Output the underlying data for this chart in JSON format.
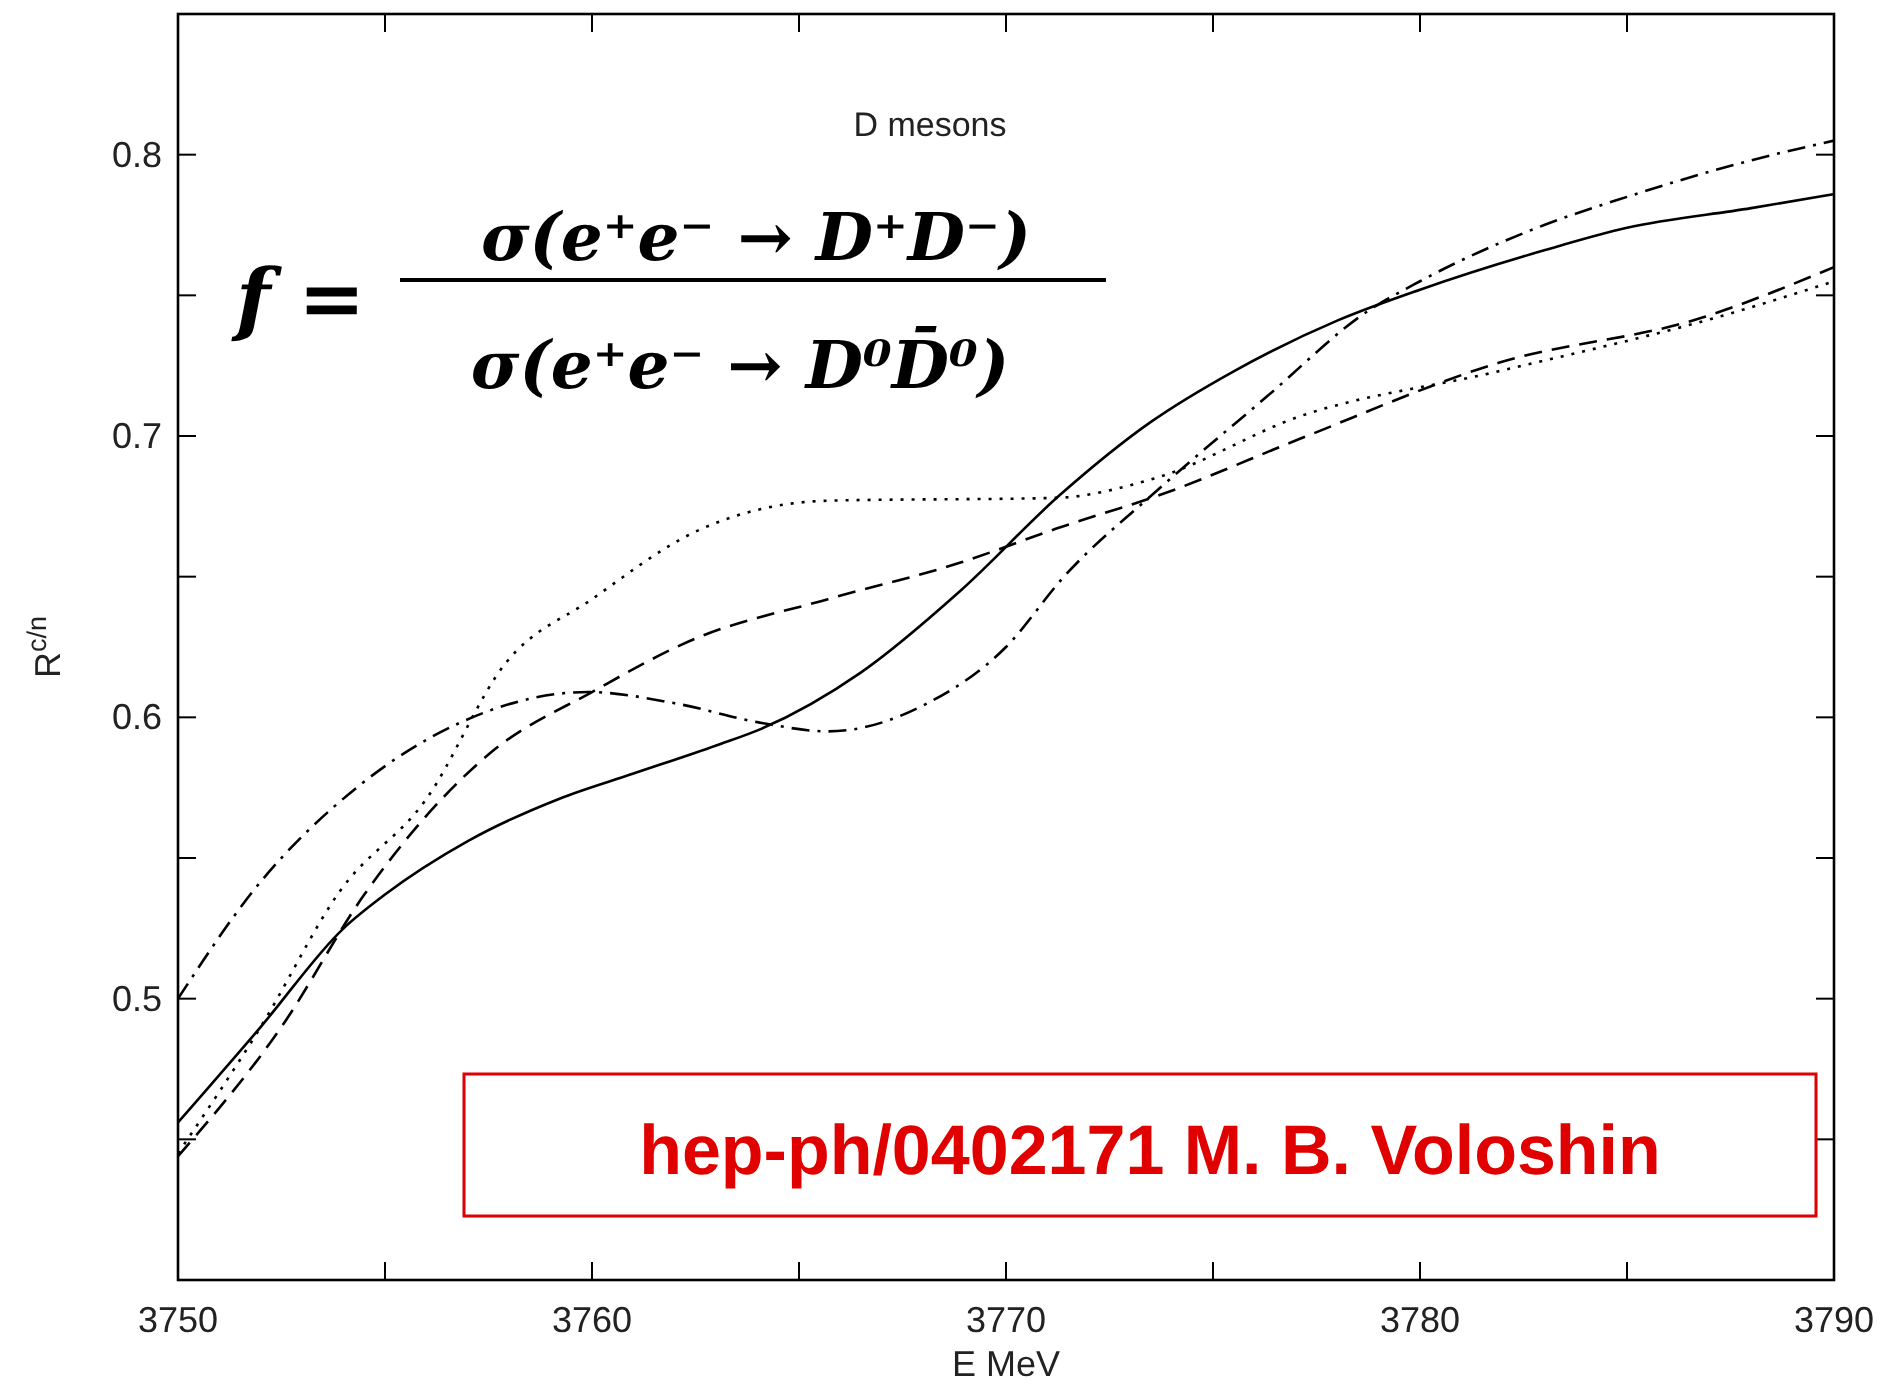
{
  "chart_data": {
    "type": "line",
    "title": "D mesons",
    "xlabel": "E MeV",
    "ylabel": "R$^{c/n}$",
    "annotations": [
      "f =",
      "σ(e⁺e⁻ → D⁺D⁻)",
      "σ(e⁺e⁻ → D⁰D̄⁰)",
      "hep-ph/0402171 M. B. Voloshin"
    ],
    "xlim": [
      3750,
      3790
    ],
    "ylim": [
      0.4,
      0.85
    ],
    "xticks": [
      3750,
      {
        "value": 3755,
        "label": null
      },
      3760,
      {
        "value": 3765,
        "label": null
      },
      3770,
      {
        "value": 3775,
        "label": null
      },
      3780,
      {
        "value": 3785,
        "label": null
      },
      3790
    ],
    "yticks": [
      {
        "value": 0.45,
        "label": null
      },
      0.5,
      {
        "value": 0.55,
        "label": null
      },
      0.6,
      {
        "value": 0.65,
        "label": null
      },
      0.7,
      {
        "value": 0.75,
        "label": null
      },
      0.8
    ],
    "grid": false,
    "marker": "none",
    "series": [
      {
        "color": "#000000",
        "line_style": "solid",
        "x": [
          3750,
          3752,
          3754,
          3755,
          3757,
          3759.2,
          3761,
          3763,
          3764.1,
          3766.5,
          3768.9,
          3771.3,
          3773.5,
          3775.5,
          3778,
          3780,
          3783,
          3785,
          3788,
          3790
        ],
        "values": [
          0.456,
          0.49,
          0.525,
          0.537,
          0.556,
          0.571,
          0.58,
          0.59,
          0.596,
          0.616,
          0.645,
          0.679,
          0.705,
          0.723,
          0.741,
          0.752,
          0.766,
          0.774,
          0.781,
          0.786
        ]
      },
      {
        "color": "#000000",
        "line_style": "dashdot",
        "x": [
          3750,
          3751.8,
          3754.4,
          3756.8,
          3759.9,
          3762,
          3764.1,
          3765.7,
          3768.1,
          3770,
          3771.4,
          3773.6,
          3776.3,
          3778.7,
          3780,
          3783,
          3785,
          3788,
          3790
        ],
        "values": [
          0.5,
          0.538,
          0.576,
          0.598,
          0.609,
          0.605,
          0.598,
          0.595,
          0.605,
          0.625,
          0.65,
          0.68,
          0.714,
          0.744,
          0.755,
          0.775,
          0.785,
          0.798,
          0.805
        ]
      },
      {
        "color": "#000000",
        "line_style": "dashed",
        "x": [
          3750,
          3752.5,
          3754.5,
          3757.6,
          3760,
          3762.5,
          3765.7,
          3768.9,
          3771.2,
          3773.9,
          3777.1,
          3781.9,
          3786.8,
          3790
        ],
        "values": [
          0.444,
          0.49,
          0.537,
          0.588,
          0.609,
          0.628,
          0.642,
          0.655,
          0.667,
          0.68,
          0.699,
          0.726,
          0.742,
          0.76
        ]
      },
      {
        "color": "#000000",
        "line_style": "dotted",
        "x": [
          3750,
          3752,
          3753.9,
          3756,
          3757.9,
          3760,
          3762.5,
          3765.7,
          3771.2,
          3773.6,
          3777.1,
          3781.9,
          3787.6,
          3790
        ],
        "values": [
          0.445,
          0.49,
          0.538,
          0.571,
          0.619,
          0.642,
          0.666,
          0.677,
          0.678,
          0.685,
          0.707,
          0.723,
          0.744,
          0.755
        ]
      }
    ]
  }
}
